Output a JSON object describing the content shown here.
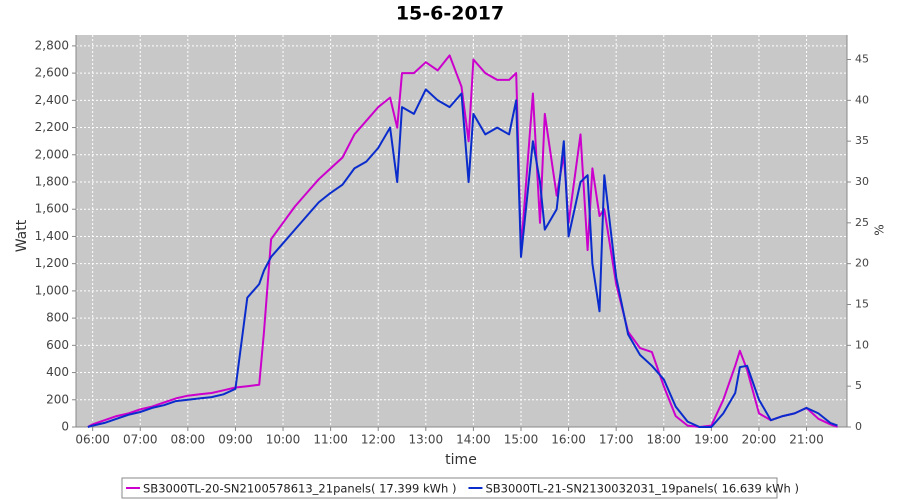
{
  "chart_data": {
    "type": "line",
    "title": "15-6-2017",
    "x_label": "time",
    "y_label": "Watt",
    "y2_label": "%",
    "x": [
      5.9,
      6.0,
      6.25,
      6.5,
      6.75,
      7.0,
      7.25,
      7.5,
      7.75,
      8.0,
      8.25,
      8.5,
      8.75,
      9.0,
      9.25,
      9.5,
      9.6,
      9.75,
      10.0,
      10.25,
      10.5,
      10.75,
      11.0,
      11.25,
      11.5,
      11.75,
      12.0,
      12.25,
      12.4,
      12.5,
      12.75,
      13.0,
      13.25,
      13.5,
      13.75,
      13.9,
      14.0,
      14.25,
      14.5,
      14.75,
      14.9,
      15.0,
      15.25,
      15.4,
      15.5,
      15.75,
      15.9,
      16.0,
      16.25,
      16.4,
      16.5,
      16.65,
      16.75,
      17.0,
      17.25,
      17.5,
      17.75,
      18.0,
      18.25,
      18.5,
      18.75,
      19.0,
      19.25,
      19.5,
      19.6,
      19.75,
      20.0,
      20.25,
      20.5,
      20.75,
      21.0,
      21.25,
      21.5,
      21.65
    ],
    "series": [
      {
        "name": "SB3000TL-20-SN2100578613_21panels( 17.399 kWh )",
        "color": "#cc00cc",
        "values": [
          0,
          20,
          50,
          80,
          100,
          130,
          150,
          180,
          210,
          230,
          240,
          250,
          270,
          290,
          300,
          310,
          700,
          1380,
          1500,
          1620,
          1720,
          1820,
          1900,
          1980,
          2150,
          2250,
          2350,
          2420,
          2200,
          2600,
          2600,
          2680,
          2620,
          2730,
          2500,
          2100,
          2700,
          2600,
          2550,
          2550,
          2600,
          1300,
          2450,
          1500,
          2300,
          1700,
          2000,
          1500,
          2150,
          1300,
          1900,
          1550,
          1600,
          1050,
          700,
          580,
          550,
          300,
          80,
          10,
          0,
          10,
          200,
          450,
          560,
          420,
          100,
          50,
          80,
          100,
          140,
          60,
          20,
          0
        ]
      },
      {
        "name": "SB3000TL-21-SN2130032031_19panels( 16.639 kWh )",
        "color": "#0a2ccc",
        "values": [
          0,
          10,
          30,
          60,
          90,
          110,
          140,
          160,
          190,
          200,
          210,
          220,
          240,
          280,
          950,
          1050,
          1150,
          1250,
          1350,
          1450,
          1550,
          1650,
          1720,
          1780,
          1900,
          1950,
          2050,
          2200,
          1800,
          2350,
          2300,
          2480,
          2400,
          2350,
          2450,
          1800,
          2300,
          2150,
          2200,
          2150,
          2400,
          1250,
          2100,
          1800,
          1450,
          1600,
          2100,
          1400,
          1800,
          1850,
          1200,
          850,
          1850,
          1100,
          680,
          530,
          450,
          350,
          150,
          40,
          0,
          0,
          100,
          250,
          440,
          450,
          200,
          50,
          80,
          100,
          140,
          100,
          30,
          10
        ]
      }
    ],
    "xlim": [
      5.65,
      21.85
    ],
    "xticks": [
      {
        "value": 6,
        "label": "06:00"
      },
      {
        "value": 7,
        "label": "07:00"
      },
      {
        "value": 8,
        "label": "08:00"
      },
      {
        "value": 9,
        "label": "09:00"
      },
      {
        "value": 10,
        "label": "10:00"
      },
      {
        "value": 11,
        "label": "11:00"
      },
      {
        "value": 12,
        "label": "12:00"
      },
      {
        "value": 13,
        "label": "13:00"
      },
      {
        "value": 14,
        "label": "14:00"
      },
      {
        "value": 15,
        "label": "15:00"
      },
      {
        "value": 16,
        "label": "16:00"
      },
      {
        "value": 17,
        "label": "17:00"
      },
      {
        "value": 18,
        "label": "18:00"
      },
      {
        "value": 19,
        "label": "19:00"
      },
      {
        "value": 20,
        "label": "20:00"
      },
      {
        "value": 21,
        "label": "21:00"
      }
    ],
    "ylim": [
      0,
      2880
    ],
    "yticks": [
      0,
      200,
      400,
      600,
      800,
      {
        "value": 1000,
        "label": "1,000"
      },
      {
        "value": 1200,
        "label": "1,200"
      },
      {
        "value": 1400,
        "label": "1,400"
      },
      {
        "value": 1600,
        "label": "1,600"
      },
      {
        "value": 1800,
        "label": "1,800"
      },
      {
        "value": 2000,
        "label": "2,000"
      },
      {
        "value": 2200,
        "label": "2,200"
      },
      {
        "value": 2400,
        "label": "2,400"
      },
      {
        "value": 2600,
        "label": "2,600"
      },
      {
        "value": 2800,
        "label": "2,800"
      }
    ],
    "y2lim": [
      0,
      48
    ],
    "y2ticks": [
      0,
      5,
      10,
      15,
      20,
      25,
      30,
      35,
      40,
      45
    ],
    "grid": true
  }
}
